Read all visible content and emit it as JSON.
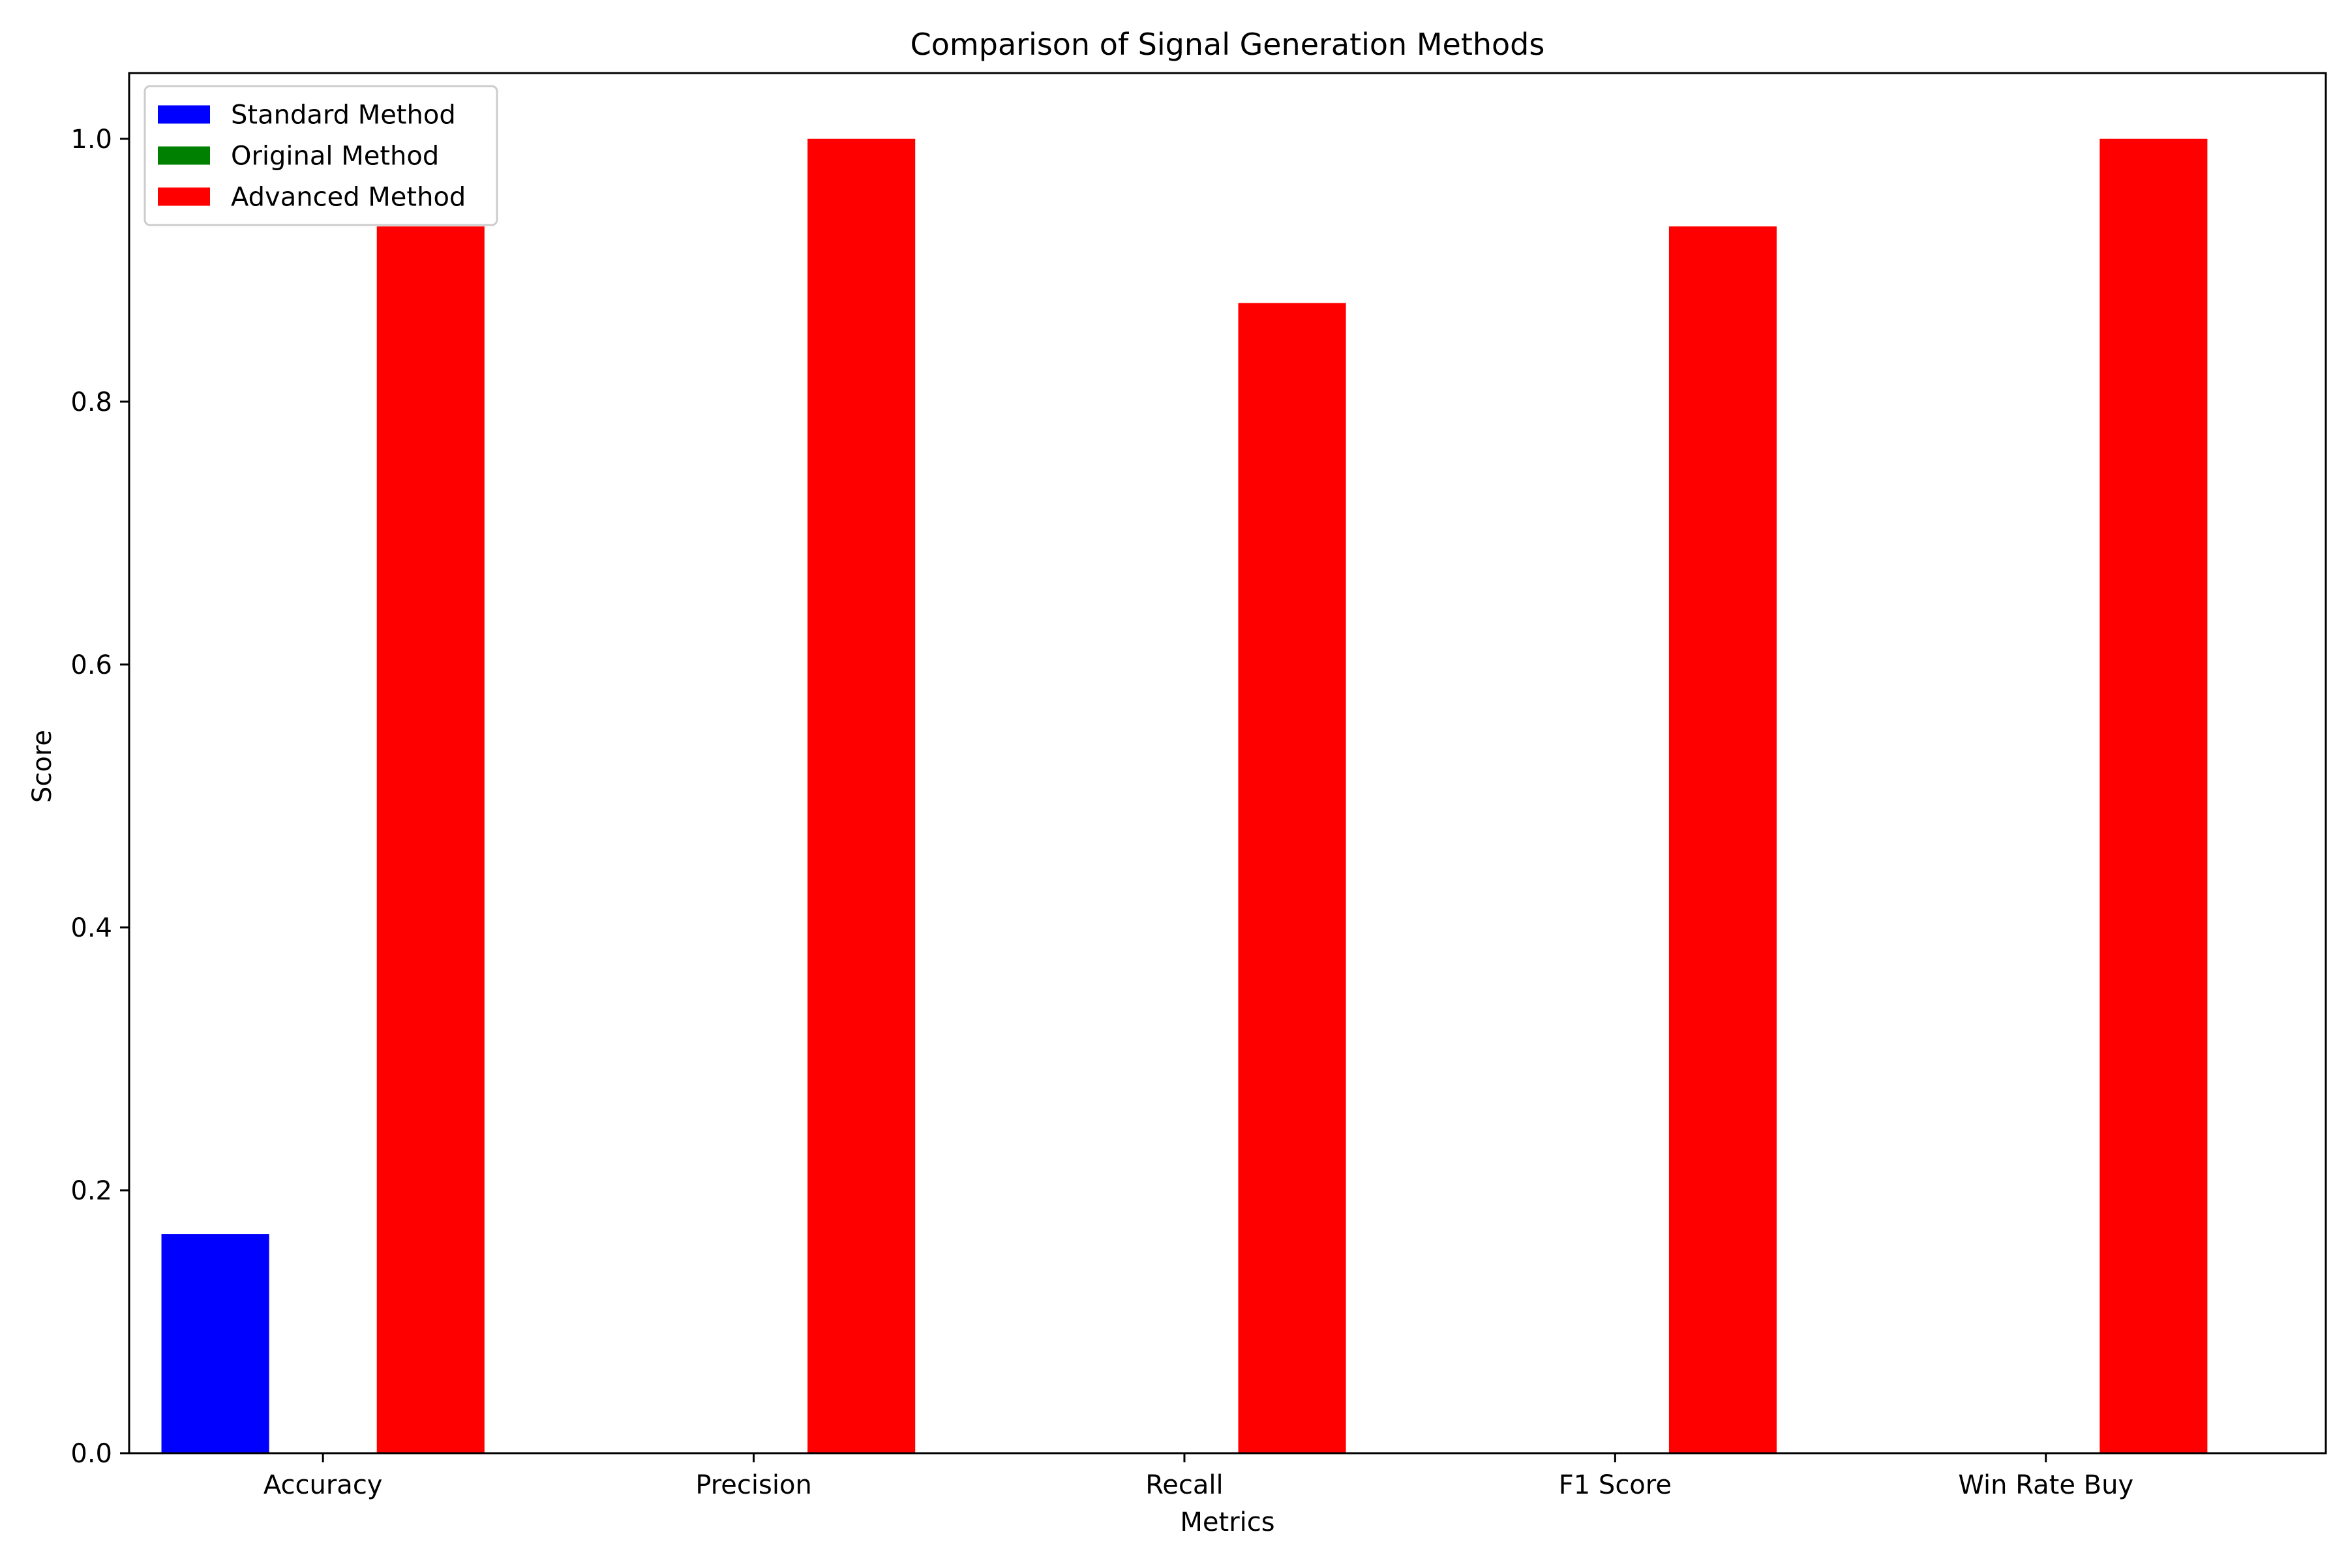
{
  "chart_data": {
    "type": "bar",
    "title": "Comparison of Signal Generation Methods",
    "xlabel": "Metrics",
    "ylabel": "Score",
    "categories": [
      "Accuracy",
      "Precision",
      "Recall",
      "F1 Score",
      "Win Rate Buy"
    ],
    "series": [
      {
        "name": "Standard Method",
        "color": "#0000ff",
        "values": [
          0.1667,
          0,
          0,
          0,
          0
        ]
      },
      {
        "name": "Original Method",
        "color": "#008000",
        "values": [
          0,
          0,
          0,
          0,
          0
        ]
      },
      {
        "name": "Advanced Method",
        "color": "#ff0000",
        "values": [
          0.9333,
          1.0,
          0.875,
          0.9333,
          1.0
        ]
      }
    ],
    "ylim": [
      0,
      1.05
    ],
    "yticks": [
      "0.0",
      "0.2",
      "0.4",
      "0.6",
      "0.8",
      "1.0"
    ],
    "grid": false,
    "legend_position": "top-left"
  }
}
